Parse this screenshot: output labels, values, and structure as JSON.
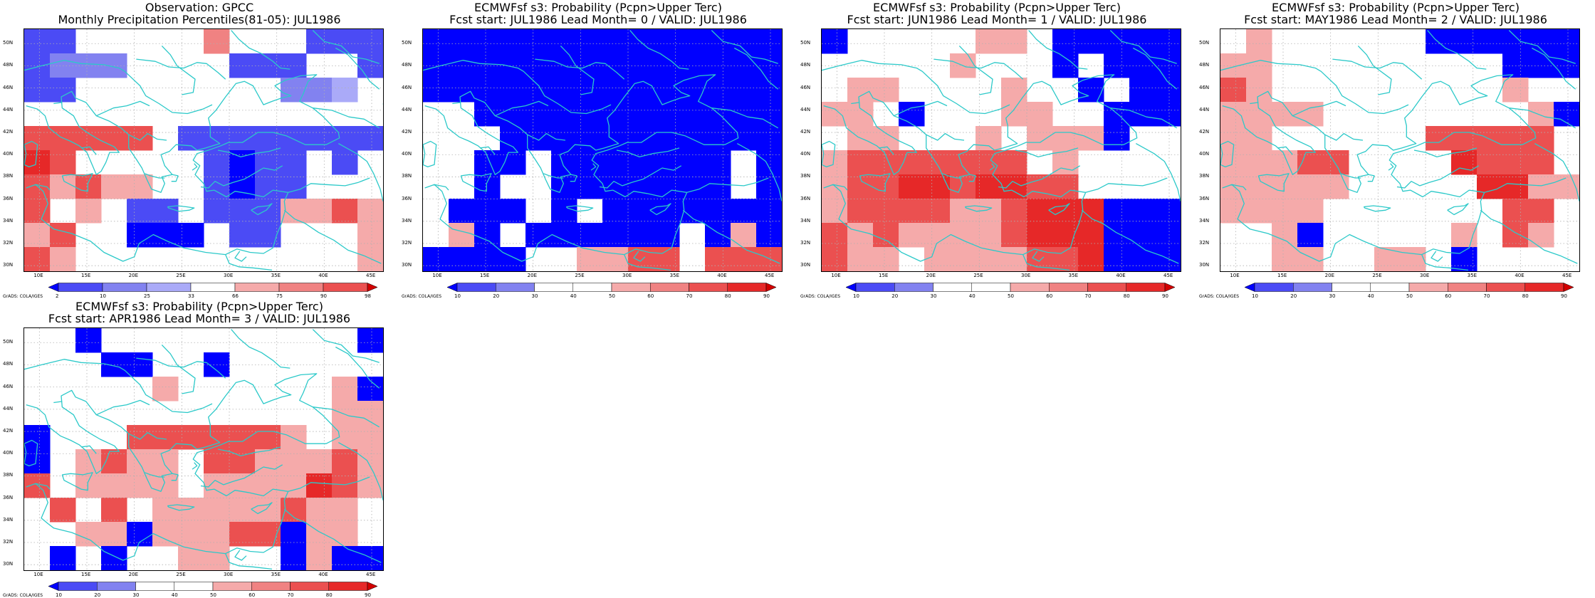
{
  "lat_ticks": [
    "50N",
    "48N",
    "46N",
    "44N",
    "42N",
    "40N",
    "38N",
    "36N",
    "34N",
    "32N",
    "30N"
  ],
  "lon_ticks": [
    "10E",
    "15E",
    "20E",
    "25E",
    "30E",
    "35E",
    "40E",
    "45E"
  ],
  "colors": {
    "coast": "#2cc9c9",
    "grid": "#b0b0b0",
    "blue_strong": "#0000ff",
    "blue_mid": "#4b4bf5",
    "blue_light": "#8282f0",
    "blue_pale": "#aaaaf8",
    "red_pale": "#f5aaaa",
    "red_light": "#f08282",
    "red_mid": "#eb5050",
    "red_strong": "#e62828",
    "red_dark": "#d20000"
  },
  "panels": [
    {
      "title_line1": "Observation: GPCC",
      "title_line2": "Monthly Precipitation Percentiles(81-05): JUL1986",
      "colorbar": {
        "ticks": [
          "2",
          "10",
          "25",
          "33",
          "66",
          "75",
          "90",
          "98"
        ],
        "colors": [
          "#0000ff",
          "#4b4bf5",
          "#8282f0",
          "#aaaaf8",
          "#ffffff",
          "#f5aaaa",
          "#f08282",
          "#eb5050",
          "#d20000"
        ]
      },
      "credit": "GrADS: COLA/IGES",
      "grid": [
        "bb00000r000bbb",
        "bccc0000bbb00b",
        "bb00s00000ccf0",
        "00000000000000",
        "kkkkk0bbbbbbbb",
        "mk00000bBbb0b0",
        "kpkpp00bBbb000",
        "k0p0bb0bbbppkp",
        "pk00BBB0bb000p",
        "kp00000000000p"
      ]
    },
    {
      "title_line1": "ECMWFsf s3: Probability (Pcpn>Upper Terc)",
      "title_line2": "Fcst start: JUL1986  Lead Month= 0 / VALID: JUL1986",
      "colorbar": {
        "ticks": [
          "10",
          "20",
          "30",
          "40",
          "50",
          "60",
          "70",
          "80",
          "90"
        ],
        "colors": [
          "#0000ff",
          "#4b4bf5",
          "#8282f0",
          "#ffffff",
          "#ffffff",
          "#f5aaaa",
          "#f08282",
          "#eb5050",
          "#e62828",
          "#d20000"
        ]
      },
      "credit": "GrADS: COLA/IGES",
      "grid": [
        "BBBBBBBBBBBBBB",
        "BBBBBBBBBBBBBB",
        "BBBBBBBBBBBBBB",
        "00BBBBBBBBBBBB",
        "000BBBBBBBBBBB",
        "00BB0BBBBBBB0B",
        "00B00BBBBBBB0B",
        "0BBB0B0BBBBBBB",
        "0pB0BBBBBB0BpB",
        "BBBB00ppkk0kkk"
      ]
    },
    {
      "title_line1": "ECMWFsf s3: Probability (Pcpn>Upper Terc)",
      "title_line2": "Fcst start: JUN1986  Lead Month= 1 / VALID: JUL1986",
      "colorbar": {
        "ticks": [
          "10",
          "20",
          "30",
          "40",
          "50",
          "60",
          "70",
          "80",
          "90"
        ],
        "colors": [
          "#0000ff",
          "#4b4bf5",
          "#8282f0",
          "#ffffff",
          "#ffffff",
          "#f5aaaa",
          "#f08282",
          "#eb5050",
          "#e62828",
          "#d20000"
        ]
      },
      "credit": "GrADS: COLA/IGES",
      "grid": [
        "B00000pp0BBBBB",
        "00000p000B0BBB",
        "0pp0000p00B0BB",
        "pp0B000pp00BBB",
        "0pp000p0pppB00",
        "pkkkkkkk0p0000",
        "pkkmmkmmkk0000",
        "pkkkkppkmmmBBB",
        "kpkppppkmmmBBB",
        "kpp0ppppkkmBBB"
      ]
    },
    {
      "title_line1": "ECMWFsf s3: Probability (Pcpn>Upper Terc)",
      "title_line2": "Fcst start: MAY1986  Lead Month= 2 / VALID: JUL1986",
      "colorbar": {
        "ticks": [
          "10",
          "20",
          "30",
          "40",
          "50",
          "60",
          "70",
          "80",
          "90"
        ],
        "colors": [
          "#0000ff",
          "#4b4bf5",
          "#8282f0",
          "#ffffff",
          "#ffffff",
          "#f5aaaa",
          "#f08282",
          "#eb5050",
          "#e62828",
          "#d20000"
        ]
      },
      "credit": "GrADS: COLA/IGES",
      "grid": [
        "0p000000BBBBBB",
        "pp000000000BBB",
        "kp000000000p00",
        "pppp00000000pB",
        "pp000000kkkkk0",
        "pppkk0000mkkk0",
        "ppppp00000mmpp",
        "pppp0000000kk0",
        "00pB00000p0kp0",
        "00pp00pp0B0000"
      ]
    },
    {
      "title_line1": "ECMWFsf s3: Probability (Pcpn>Upper Terc)",
      "title_line2": "Fcst start: APR1986  Lead Month= 3 / VALID: JUL1986",
      "colorbar": {
        "ticks": [
          "10",
          "20",
          "30",
          "40",
          "50",
          "60",
          "70",
          "80",
          "90"
        ],
        "colors": [
          "#0000ff",
          "#4b4bf5",
          "#8282f0",
          "#ffffff",
          "#ffffff",
          "#f5aaaa",
          "#f08282",
          "#eb5050",
          "#e62828",
          "#d20000"
        ]
      },
      "credit": "GrADS: COLA/IGES",
      "grid": [
        "00B0000000000B",
        "000BB00B000000",
        "00000p000000pB",
        "000000000000pp",
        "B000kkkkkkp0pp",
        "B0pkpp0kkpppkp",
        "k0pppp0ppppmkp",
        "0k0k0pppppkpp0",
        "00ppBpppkkBpp0",
        "0B0B00pp00BpBB"
      ]
    }
  ]
}
